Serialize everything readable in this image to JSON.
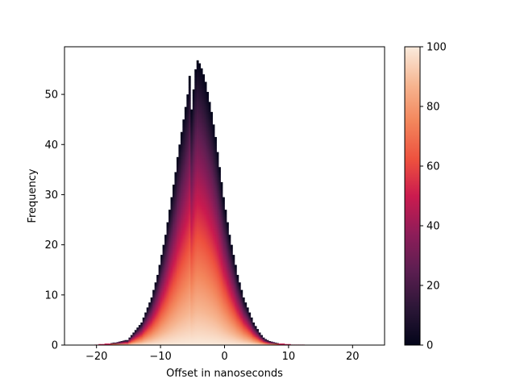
{
  "chart_data": {
    "type": "bar",
    "subtype": "histogram-colored-stack",
    "xlabel": "Offset in nanoseconds",
    "ylabel": "Frequency",
    "xlim": [
      -25,
      25
    ],
    "ylim": [
      0,
      59.5
    ],
    "xticks": [
      -20,
      -10,
      0,
      10,
      20
    ],
    "yticks": [
      0,
      10,
      20,
      30,
      40,
      50
    ],
    "xtick_labels": [
      "−20",
      "−10",
      "0",
      "10",
      "20"
    ],
    "ytick_labels": [
      "0",
      "10",
      "20",
      "30",
      "40",
      "50"
    ],
    "bin_start": -25,
    "bin_width": 0.3125,
    "frequencies": [
      0,
      0,
      0,
      0,
      0,
      0,
      0,
      0,
      0,
      0,
      0,
      0,
      0,
      0,
      0,
      0.1,
      0.1,
      0.2,
      0.2,
      0.2,
      0.3,
      0.3,
      0.3,
      0.4,
      0.5,
      0.5,
      0.6,
      0.7,
      0.8,
      0.9,
      1.0,
      1.0,
      1.5,
      2.0,
      2.5,
      3.0,
      3.5,
      4.0,
      4.5,
      5.5,
      6.5,
      7.5,
      8.5,
      9.5,
      11.0,
      12.5,
      14.0,
      16.0,
      18.0,
      20.0,
      22.0,
      24.5,
      27.0,
      29.5,
      32.0,
      34.5,
      37.5,
      40.0,
      42.5,
      45.0,
      47.5,
      50.0,
      53.7,
      47.0,
      51.0,
      55.0,
      56.8,
      56.2,
      55.2,
      54.0,
      52.5,
      50.5,
      48.5,
      46.5,
      44.0,
      41.5,
      38.5,
      35.5,
      32.5,
      29.5,
      27.0,
      24.5,
      22.0,
      20.0,
      18.0,
      16.0,
      14.0,
      12.5,
      11.0,
      9.5,
      8.5,
      7.5,
      6.5,
      5.5,
      4.5,
      3.8,
      3.2,
      2.5,
      2.0,
      1.5,
      1.2,
      1.0,
      0.8,
      0.7,
      0.6,
      0.5,
      0.4,
      0.3,
      0.3,
      0.3,
      0.2,
      0.2,
      0.2,
      0.1,
      0.1,
      0.1,
      0.1,
      0.1,
      0.1,
      0.1
    ],
    "colorbar": {
      "colormap": "rocket",
      "range": [
        0,
        100
      ],
      "ticks": [
        0,
        20,
        40,
        60,
        80,
        100
      ],
      "tick_labels": [
        "0",
        "20",
        "40",
        "60",
        "80",
        "100"
      ]
    }
  }
}
